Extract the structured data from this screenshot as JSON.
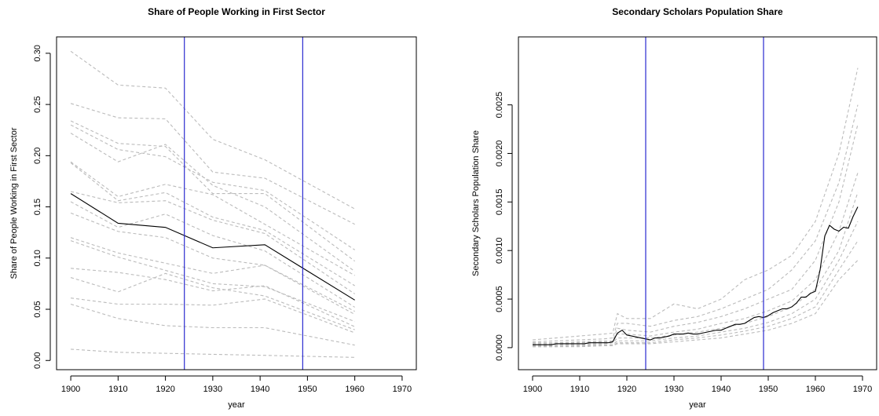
{
  "chart_data": [
    {
      "type": "line",
      "title": "Share of People Working in First Sector",
      "x_label": "year",
      "y_label": "Share of People Working in First Sector",
      "xlim": [
        1897,
        1973
      ],
      "ylim": [
        -0.009,
        0.316
      ],
      "xticks": [
        1900,
        1910,
        1920,
        1930,
        1940,
        1950,
        1960,
        1970
      ],
      "yticks": [
        {
          "value": 0,
          "label": "0.00"
        },
        {
          "value": 0.05,
          "label": "0.05"
        },
        {
          "value": 0.1,
          "label": "0.10"
        },
        {
          "value": 0.15,
          "label": "0.15"
        },
        {
          "value": 0.2,
          "label": "0.20"
        },
        {
          "value": 0.25,
          "label": "0.25"
        },
        {
          "value": 0.3,
          "label": "0.30"
        }
      ],
      "vlines": [
        1924,
        1949
      ],
      "vline_color": "#2a2ad0",
      "x": [
        1900,
        1910,
        1920,
        1930,
        1941,
        1960
      ],
      "series": [
        {
          "color": "#bbbbbb",
          "dashed": true,
          "values": [
            0.302,
            0.269,
            0.266,
            0.216,
            0.196,
            0.148
          ]
        },
        {
          "color": "#bbbbbb",
          "dashed": true,
          "values": [
            0.251,
            0.237,
            0.236,
            0.184,
            0.178,
            0.133
          ]
        },
        {
          "color": "#bbbbbb",
          "dashed": true,
          "values": [
            0.234,
            0.212,
            0.209,
            0.163,
            0.163,
            0.097
          ]
        },
        {
          "color": "#bbbbbb",
          "dashed": true,
          "values": [
            0.23,
            0.206,
            0.199,
            0.174,
            0.166,
            0.108
          ]
        },
        {
          "color": "#bbbbbb",
          "dashed": true,
          "values": [
            0.222,
            0.194,
            0.211,
            0.171,
            0.15,
            0.087
          ]
        },
        {
          "color": "#bbbbbb",
          "dashed": true,
          "values": [
            0.194,
            0.16,
            0.172,
            0.162,
            0.133,
            0.083
          ]
        },
        {
          "color": "#bbbbbb",
          "dashed": true,
          "values": [
            0.193,
            0.156,
            0.164,
            0.14,
            0.127,
            0.073
          ]
        },
        {
          "color": "#bbbbbb",
          "dashed": true,
          "values": [
            0.165,
            0.154,
            0.156,
            0.137,
            0.124,
            0.065
          ]
        },
        {
          "color": "#bbbbbb",
          "dashed": true,
          "values": [
            0.155,
            0.13,
            0.143,
            0.122,
            0.107,
            0.052
          ]
        },
        {
          "color": "#bbbbbb",
          "dashed": true,
          "values": [
            0.144,
            0.126,
            0.12,
            0.1,
            0.093,
            0.048
          ]
        },
        {
          "color": "#bbbbbb",
          "dashed": true,
          "values": [
            0.12,
            0.105,
            0.095,
            0.085,
            0.093,
            0.045
          ]
        },
        {
          "color": "#bbbbbb",
          "dashed": true,
          "values": [
            0.117,
            0.101,
            0.088,
            0.075,
            0.072,
            0.038
          ]
        },
        {
          "color": "#bbbbbb",
          "dashed": true,
          "values": [
            0.09,
            0.086,
            0.079,
            0.068,
            0.073,
            0.033
          ]
        },
        {
          "color": "#bbbbbb",
          "dashed": true,
          "values": [
            0.081,
            0.067,
            0.085,
            0.071,
            0.063,
            0.03
          ]
        },
        {
          "color": "#bbbbbb",
          "dashed": true,
          "values": [
            0.061,
            0.055,
            0.055,
            0.054,
            0.06,
            0.027
          ]
        },
        {
          "color": "#bbbbbb",
          "dashed": true,
          "values": [
            0.055,
            0.041,
            0.034,
            0.032,
            0.032,
            0.015
          ]
        },
        {
          "color": "#bbbbbb",
          "dashed": true,
          "values": [
            0.011,
            0.008,
            0.007,
            0.006,
            0.005,
            0.003
          ]
        },
        {
          "color": "#000000",
          "dashed": false,
          "values": [
            0.163,
            0.134,
            0.13,
            0.11,
            0.113,
            0.059
          ]
        }
      ]
    },
    {
      "type": "line",
      "title": "Secondary Scholars Population Share",
      "x_label": "year",
      "y_label": "Secondary Scholars Population Share",
      "xlim": [
        1897,
        1973
      ],
      "ylim": [
        -0.000227,
        0.0032
      ],
      "xticks": [
        1900,
        1910,
        1920,
        1930,
        1940,
        1950,
        1960,
        1970
      ],
      "yticks": [
        {
          "value": 0,
          "label": "0.0000"
        },
        {
          "value": 0.0005,
          "label": "0.0005"
        },
        {
          "value": 0.001,
          "label": "0.0010"
        },
        {
          "value": 0.0015,
          "label": "0.0015"
        },
        {
          "value": 0.002,
          "label": "0.0020"
        },
        {
          "value": 0.0025,
          "label": "0.0025"
        }
      ],
      "vlines": [
        1924,
        1949
      ],
      "vline_color": "#2a2ad0",
      "series": [
        {
          "color": "#bbbbbb",
          "dashed": true,
          "x": [
            1900,
            1905,
            1910,
            1915,
            1917,
            1918,
            1920,
            1925,
            1930,
            1935,
            1940,
            1945,
            1950,
            1955,
            1960,
            1965,
            1969
          ],
          "values": [
            8e-05,
            0.0001,
            0.00012,
            0.00014,
            0.00015,
            0.00035,
            0.0003,
            0.0003,
            0.00045,
            0.0004,
            0.0005,
            0.0007,
            0.0008,
            0.00095,
            0.0013,
            0.002,
            0.00288
          ]
        },
        {
          "color": "#bbbbbb",
          "dashed": true,
          "x": [
            1900,
            1905,
            1910,
            1915,
            1917,
            1918,
            1920,
            1925,
            1930,
            1935,
            1940,
            1945,
            1950,
            1955,
            1960,
            1965,
            1969
          ],
          "values": [
            6e-05,
            7e-05,
            8e-05,
            9e-05,
            0.0001,
            0.00025,
            0.00025,
            0.00022,
            0.00028,
            0.00032,
            0.0004,
            0.0005,
            0.0006,
            0.0008,
            0.0011,
            0.0017,
            0.0025
          ]
        },
        {
          "color": "#bbbbbb",
          "dashed": true,
          "x": [
            1900,
            1905,
            1910,
            1915,
            1917,
            1918,
            1920,
            1925,
            1930,
            1935,
            1940,
            1945,
            1950,
            1955,
            1960,
            1965,
            1969
          ],
          "values": [
            5e-05,
            5e-05,
            6e-05,
            7e-05,
            7e-05,
            0.0002,
            0.00018,
            0.00016,
            0.00022,
            0.00026,
            0.00032,
            0.0004,
            0.0005,
            0.0006,
            0.0009,
            0.0015,
            0.0023
          ]
        },
        {
          "color": "#bbbbbb",
          "dashed": true,
          "x": [
            1900,
            1905,
            1910,
            1915,
            1917,
            1918,
            1920,
            1925,
            1930,
            1935,
            1940,
            1945,
            1950,
            1955,
            1960,
            1965,
            1969
          ],
          "values": [
            4e-05,
            4e-05,
            5e-05,
            6e-05,
            6e-05,
            0.00014,
            0.00014,
            0.00012,
            0.00016,
            0.00019,
            0.00025,
            0.0003,
            0.00038,
            0.00048,
            0.0007,
            0.0012,
            0.0018
          ]
        },
        {
          "color": "#bbbbbb",
          "dashed": true,
          "x": [
            1900,
            1905,
            1910,
            1915,
            1917,
            1918,
            1920,
            1925,
            1930,
            1935,
            1940,
            1945,
            1950,
            1955,
            1960,
            1965,
            1969
          ],
          "values": [
            3e-05,
            3e-05,
            4e-05,
            4e-05,
            5e-05,
            0.0001,
            0.0001,
            0.0001,
            0.00013,
            0.00016,
            0.0002,
            0.00025,
            0.00032,
            0.00042,
            0.0006,
            0.001,
            0.0016
          ]
        },
        {
          "color": "#bbbbbb",
          "dashed": true,
          "x": [
            1900,
            1905,
            1910,
            1915,
            1917,
            1918,
            1920,
            1925,
            1930,
            1935,
            1940,
            1945,
            1950,
            1955,
            1960,
            1965,
            1969
          ],
          "values": [
            2e-05,
            2e-05,
            3e-05,
            3e-05,
            3e-05,
            7e-05,
            7e-05,
            7e-05,
            0.0001,
            0.00012,
            0.00016,
            0.0002,
            0.00026,
            0.00035,
            0.0005,
            0.0009,
            0.0013
          ]
        },
        {
          "color": "#bbbbbb",
          "dashed": true,
          "x": [
            1900,
            1905,
            1910,
            1915,
            1917,
            1918,
            1920,
            1925,
            1930,
            1935,
            1940,
            1945,
            1950,
            1955,
            1960,
            1965,
            1969
          ],
          "values": [
            1e-05,
            1e-05,
            2e-05,
            2e-05,
            2e-05,
            5e-05,
            5e-05,
            5e-05,
            8e-05,
            0.0001,
            0.00013,
            0.00017,
            0.00022,
            0.0003,
            0.00042,
            0.0008,
            0.0011
          ]
        },
        {
          "color": "#bbbbbb",
          "dashed": true,
          "x": [
            1900,
            1905,
            1910,
            1915,
            1917,
            1918,
            1920,
            1925,
            1930,
            1935,
            1940,
            1945,
            1950,
            1955,
            1960,
            1965,
            1969
          ],
          "values": [
            1e-05,
            1e-05,
            1e-05,
            2e-05,
            2e-05,
            4e-05,
            4e-05,
            4e-05,
            6e-05,
            8e-05,
            0.0001,
            0.00014,
            0.00018,
            0.00025,
            0.00035,
            0.0007,
            0.0009
          ]
        },
        {
          "color": "#000000",
          "dashed": false,
          "x": [
            1900,
            1901,
            1902,
            1903,
            1904,
            1905,
            1906,
            1907,
            1908,
            1909,
            1910,
            1911,
            1912,
            1913,
            1914,
            1915,
            1916,
            1917,
            1918,
            1919,
            1920,
            1921,
            1922,
            1923,
            1924,
            1925,
            1926,
            1927,
            1928,
            1929,
            1930,
            1931,
            1932,
            1933,
            1934,
            1935,
            1936,
            1937,
            1938,
            1939,
            1940,
            1941,
            1942,
            1943,
            1944,
            1945,
            1946,
            1947,
            1948,
            1949,
            1950,
            1951,
            1952,
            1953,
            1954,
            1955,
            1956,
            1957,
            1958,
            1959,
            1960,
            1961,
            1962,
            1963,
            1964,
            1965,
            1966,
            1967,
            1968,
            1969
          ],
          "values": [
            3e-05,
            3e-05,
            3e-05,
            3e-05,
            3e-05,
            4e-05,
            4e-05,
            4e-05,
            4e-05,
            4e-05,
            4e-05,
            4e-05,
            5e-05,
            5e-05,
            5e-05,
            5e-05,
            5e-05,
            6e-05,
            0.00015,
            0.00018,
            0.00013,
            0.00012,
            0.00011,
            0.0001,
            9e-05,
            8e-05,
            0.0001,
            0.0001,
            0.00011,
            0.00012,
            0.00014,
            0.00014,
            0.00014,
            0.00015,
            0.00014,
            0.00014,
            0.00015,
            0.00016,
            0.00017,
            0.00018,
            0.00018,
            0.0002,
            0.00022,
            0.00024,
            0.00024,
            0.00025,
            0.00028,
            0.00031,
            0.00032,
            0.00031,
            0.00033,
            0.00036,
            0.00038,
            0.0004,
            0.0004,
            0.00042,
            0.00046,
            0.00052,
            0.00052,
            0.00056,
            0.00058,
            0.0008,
            0.00115,
            0.00126,
            0.00122,
            0.0012,
            0.00124,
            0.00123,
            0.00135,
            0.00145
          ]
        }
      ]
    }
  ]
}
